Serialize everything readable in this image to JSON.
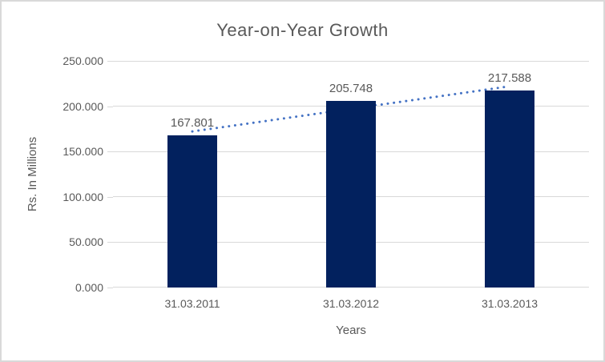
{
  "chart_data": {
    "type": "bar",
    "title": "Year-on-Year Growth",
    "xlabel": "Years",
    "ylabel": "Rs. In Millions",
    "categories": [
      "31.03.2011",
      "31.03.2012",
      "31.03.2013"
    ],
    "values": [
      167.801,
      205.748,
      217.588
    ],
    "data_labels": [
      "167.801",
      "205.748",
      "217.588"
    ],
    "y_ticks": [
      {
        "value": 0,
        "label": "0.000"
      },
      {
        "value": 50,
        "label": "50.000"
      },
      {
        "value": 100,
        "label": "100.000"
      },
      {
        "value": 150,
        "label": "150.000"
      },
      {
        "value": 200,
        "label": "200.000"
      },
      {
        "value": 250,
        "label": "250.000"
      }
    ],
    "ylim": [
      0,
      250
    ],
    "grid": true,
    "legend": "none",
    "trendline": {
      "fit": "linear",
      "style": "dotted"
    },
    "colors": {
      "bar": "#02215E",
      "trendline": "#4472C4",
      "text": "#595959",
      "gridline": "#D9D9D9",
      "frame_border": "#D9D9D9",
      "background": "#FFFFFF"
    }
  }
}
